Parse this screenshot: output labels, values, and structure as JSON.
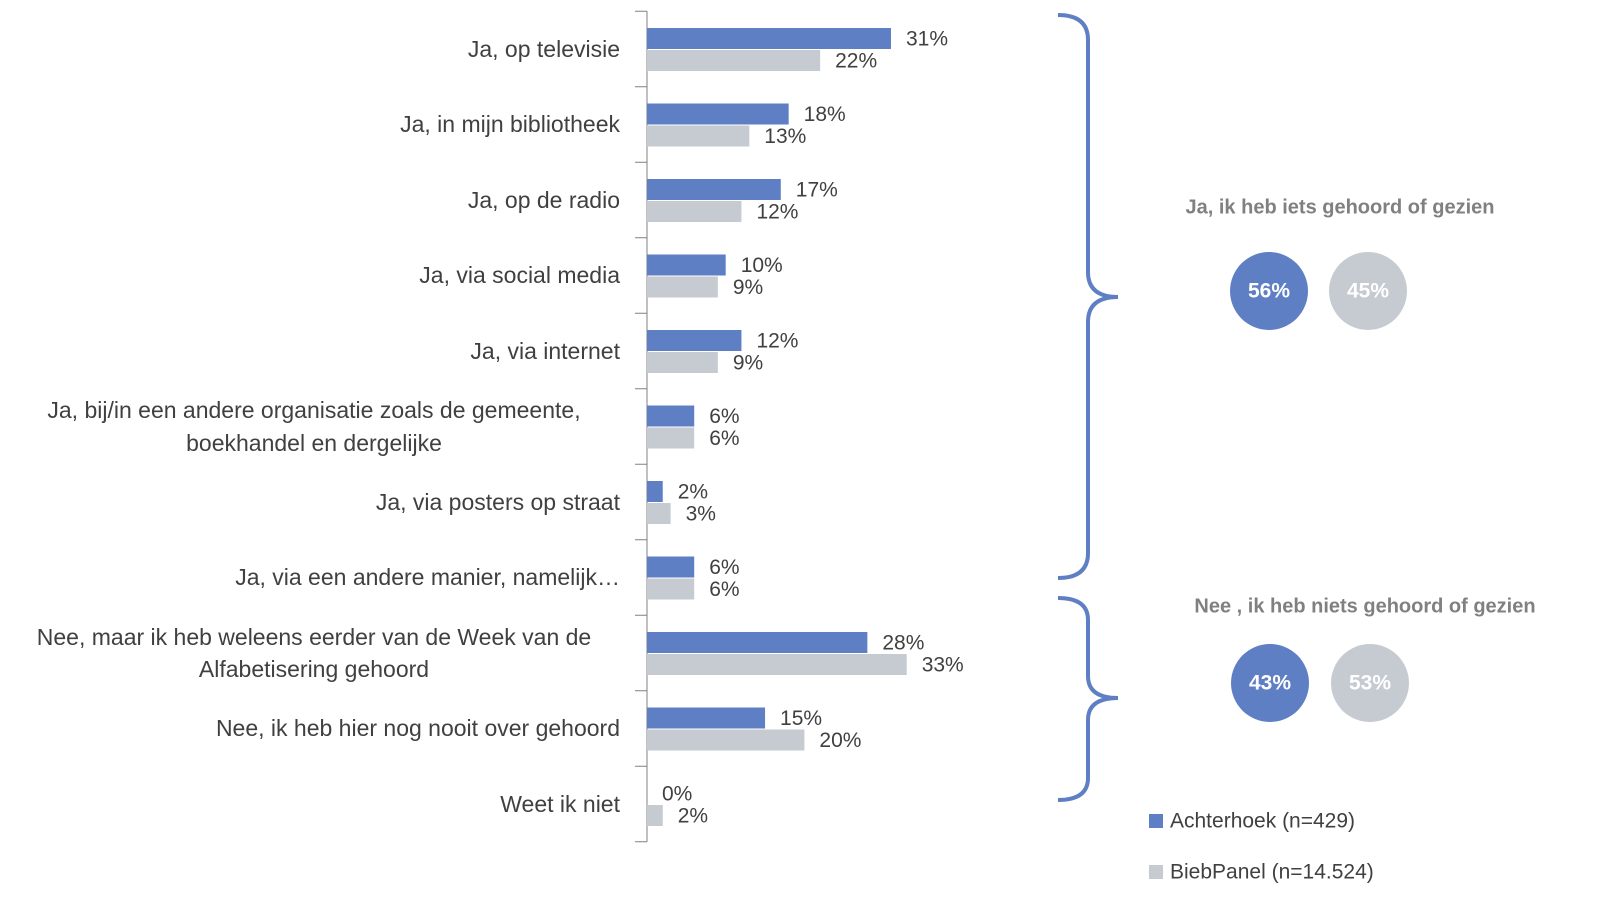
{
  "chart_data": {
    "type": "bar",
    "orientation": "horizontal",
    "categories": [
      "Ja, op televisie",
      "Ja, in mijn bibliotheek",
      "Ja, op de radio",
      "Ja, via social media",
      "Ja, via internet",
      "Ja, bij/in een andere organisatie zoals de gemeente, boekhandel en dergelijke",
      "Ja, via posters op straat",
      "Ja, via een andere manier, namelijk…",
      "Nee, maar ik heb weleens eerder van de Week van de Alfabetisering gehoord",
      "Nee, ik heb hier nog nooit over gehoord",
      "Weet ik niet"
    ],
    "series": [
      {
        "name": "Achterhoek (n=429)",
        "color": "#5f7fc4",
        "values": [
          31,
          18,
          17,
          10,
          12,
          6,
          2,
          6,
          28,
          15,
          0
        ],
        "value_labels": [
          "31%",
          "18%",
          "17%",
          "10%",
          "12%",
          "6%",
          "2%",
          "6%",
          "28%",
          "15%",
          "0%"
        ]
      },
      {
        "name": "BiebPanel (n=14.524)",
        "color": "#c6cbd2",
        "values": [
          22,
          13,
          12,
          9,
          9,
          6,
          3,
          6,
          33,
          20,
          2
        ],
        "value_labels": [
          "22%",
          "13%",
          "12%",
          "9%",
          "9%",
          "6%",
          "3%",
          "6%",
          "33%",
          "20%",
          "2%"
        ]
      }
    ],
    "xlim": [
      0,
      100
    ],
    "legend": "bottom-right",
    "summary": [
      {
        "title": "Ja, ik heb iets gehoord of gezien",
        "values": [
          56,
          45
        ],
        "value_labels": [
          "56%",
          "45%"
        ]
      },
      {
        "title": "Nee , ik heb niets gehoord of gezien",
        "values": [
          43,
          53
        ],
        "value_labels": [
          "43%",
          "53%"
        ]
      }
    ]
  }
}
